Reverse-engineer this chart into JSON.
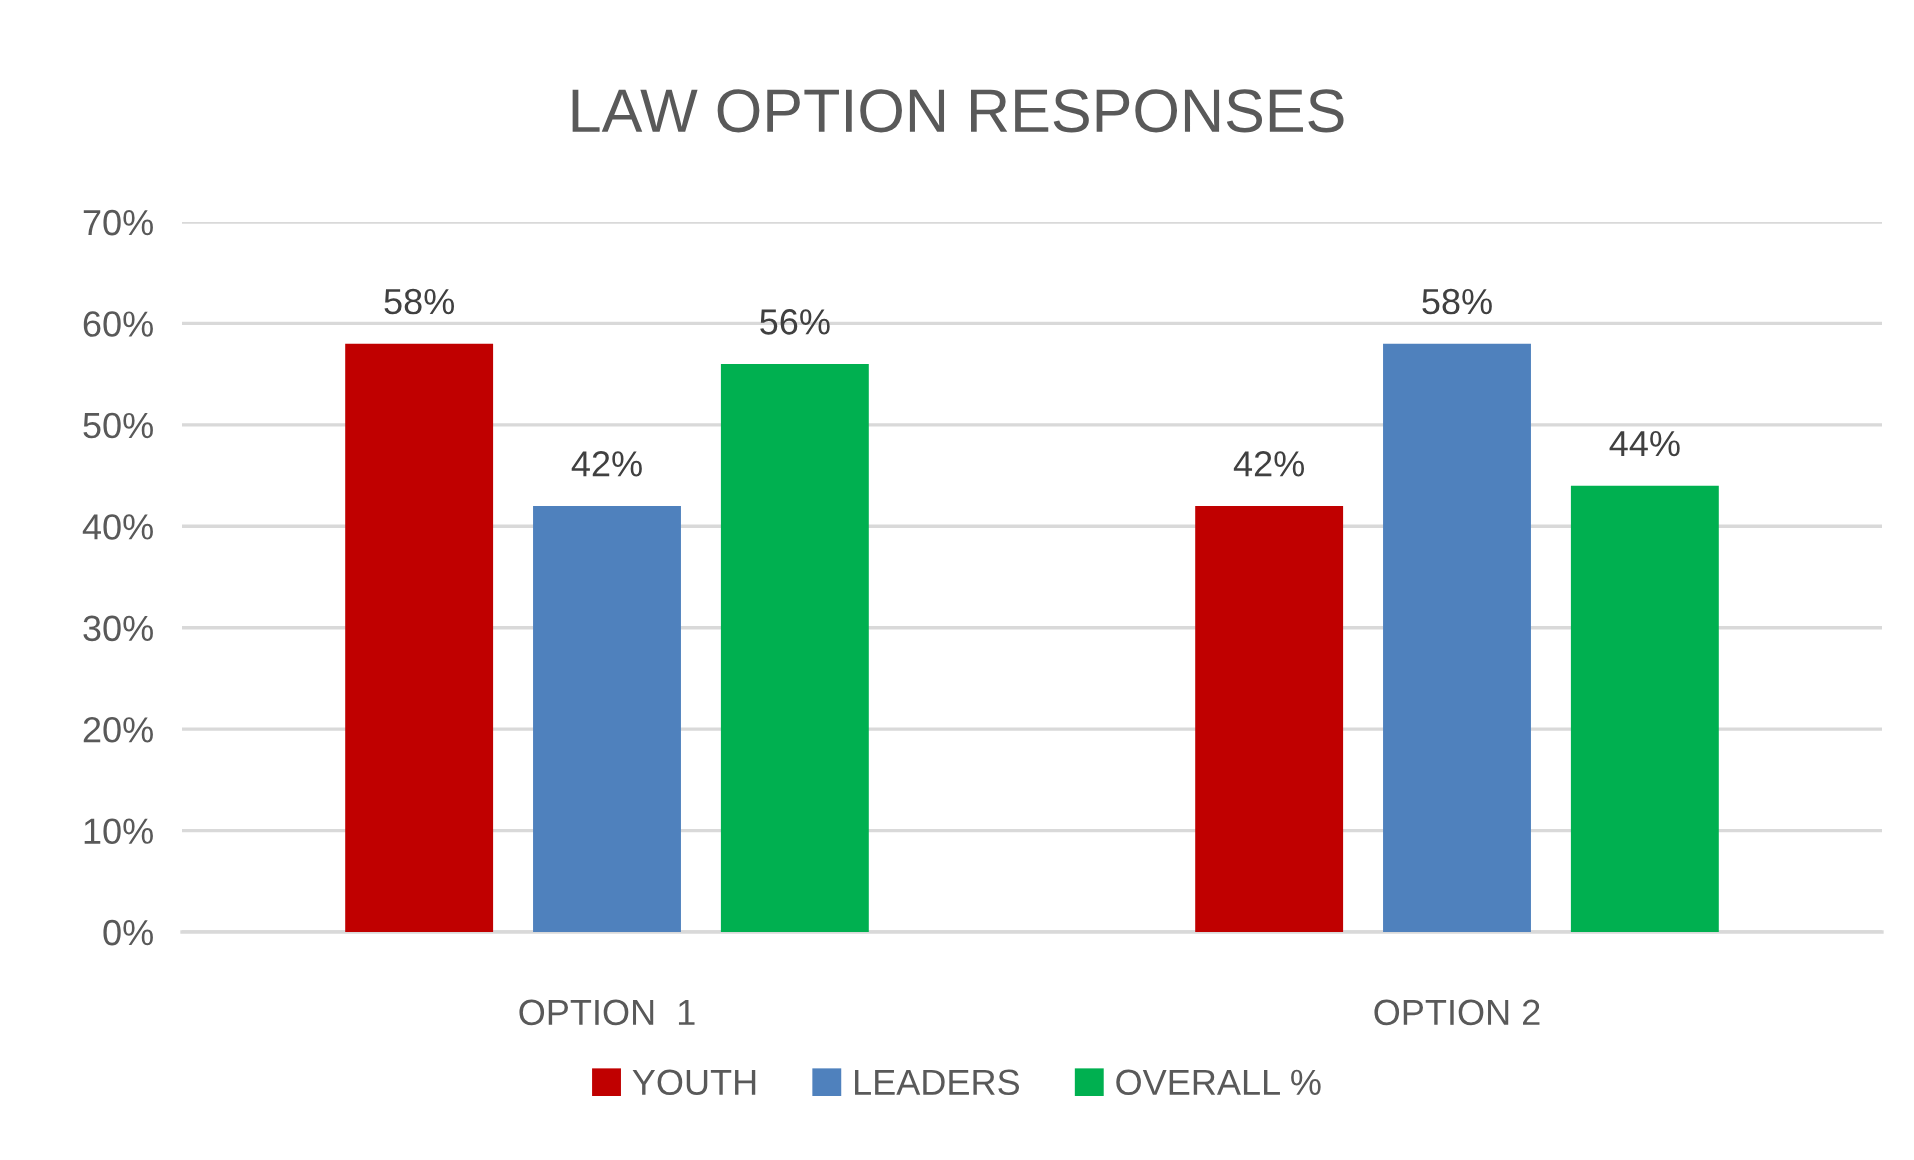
{
  "chart_data": {
    "type": "bar",
    "title": "LAW OPTION RESPONSES",
    "categories": [
      "OPTION  1",
      "OPTION 2"
    ],
    "series": [
      {
        "name": "YOUTH",
        "color": "#c00000",
        "values": [
          58,
          42
        ],
        "value_labels": [
          "58%",
          "42%"
        ]
      },
      {
        "name": "LEADERS",
        "color": "#4f81bd",
        "values": [
          42,
          58
        ],
        "value_labels": [
          "42%",
          "58%"
        ]
      },
      {
        "name": "OVERALL %",
        "color": "#00b050",
        "values": [
          56,
          44
        ],
        "value_labels": [
          "56%",
          "44%"
        ]
      }
    ],
    "ylim": [
      0,
      70
    ],
    "yticks": [
      {
        "value": 0,
        "label": "0%"
      },
      {
        "value": 10,
        "label": "10%"
      },
      {
        "value": 20,
        "label": "20%"
      },
      {
        "value": 30,
        "label": "30%"
      },
      {
        "value": 40,
        "label": "40%"
      },
      {
        "value": 50,
        "label": "50%"
      },
      {
        "value": 60,
        "label": "60%"
      },
      {
        "value": 70,
        "label": "70%"
      }
    ],
    "grid": "y",
    "legend": "bottom"
  }
}
